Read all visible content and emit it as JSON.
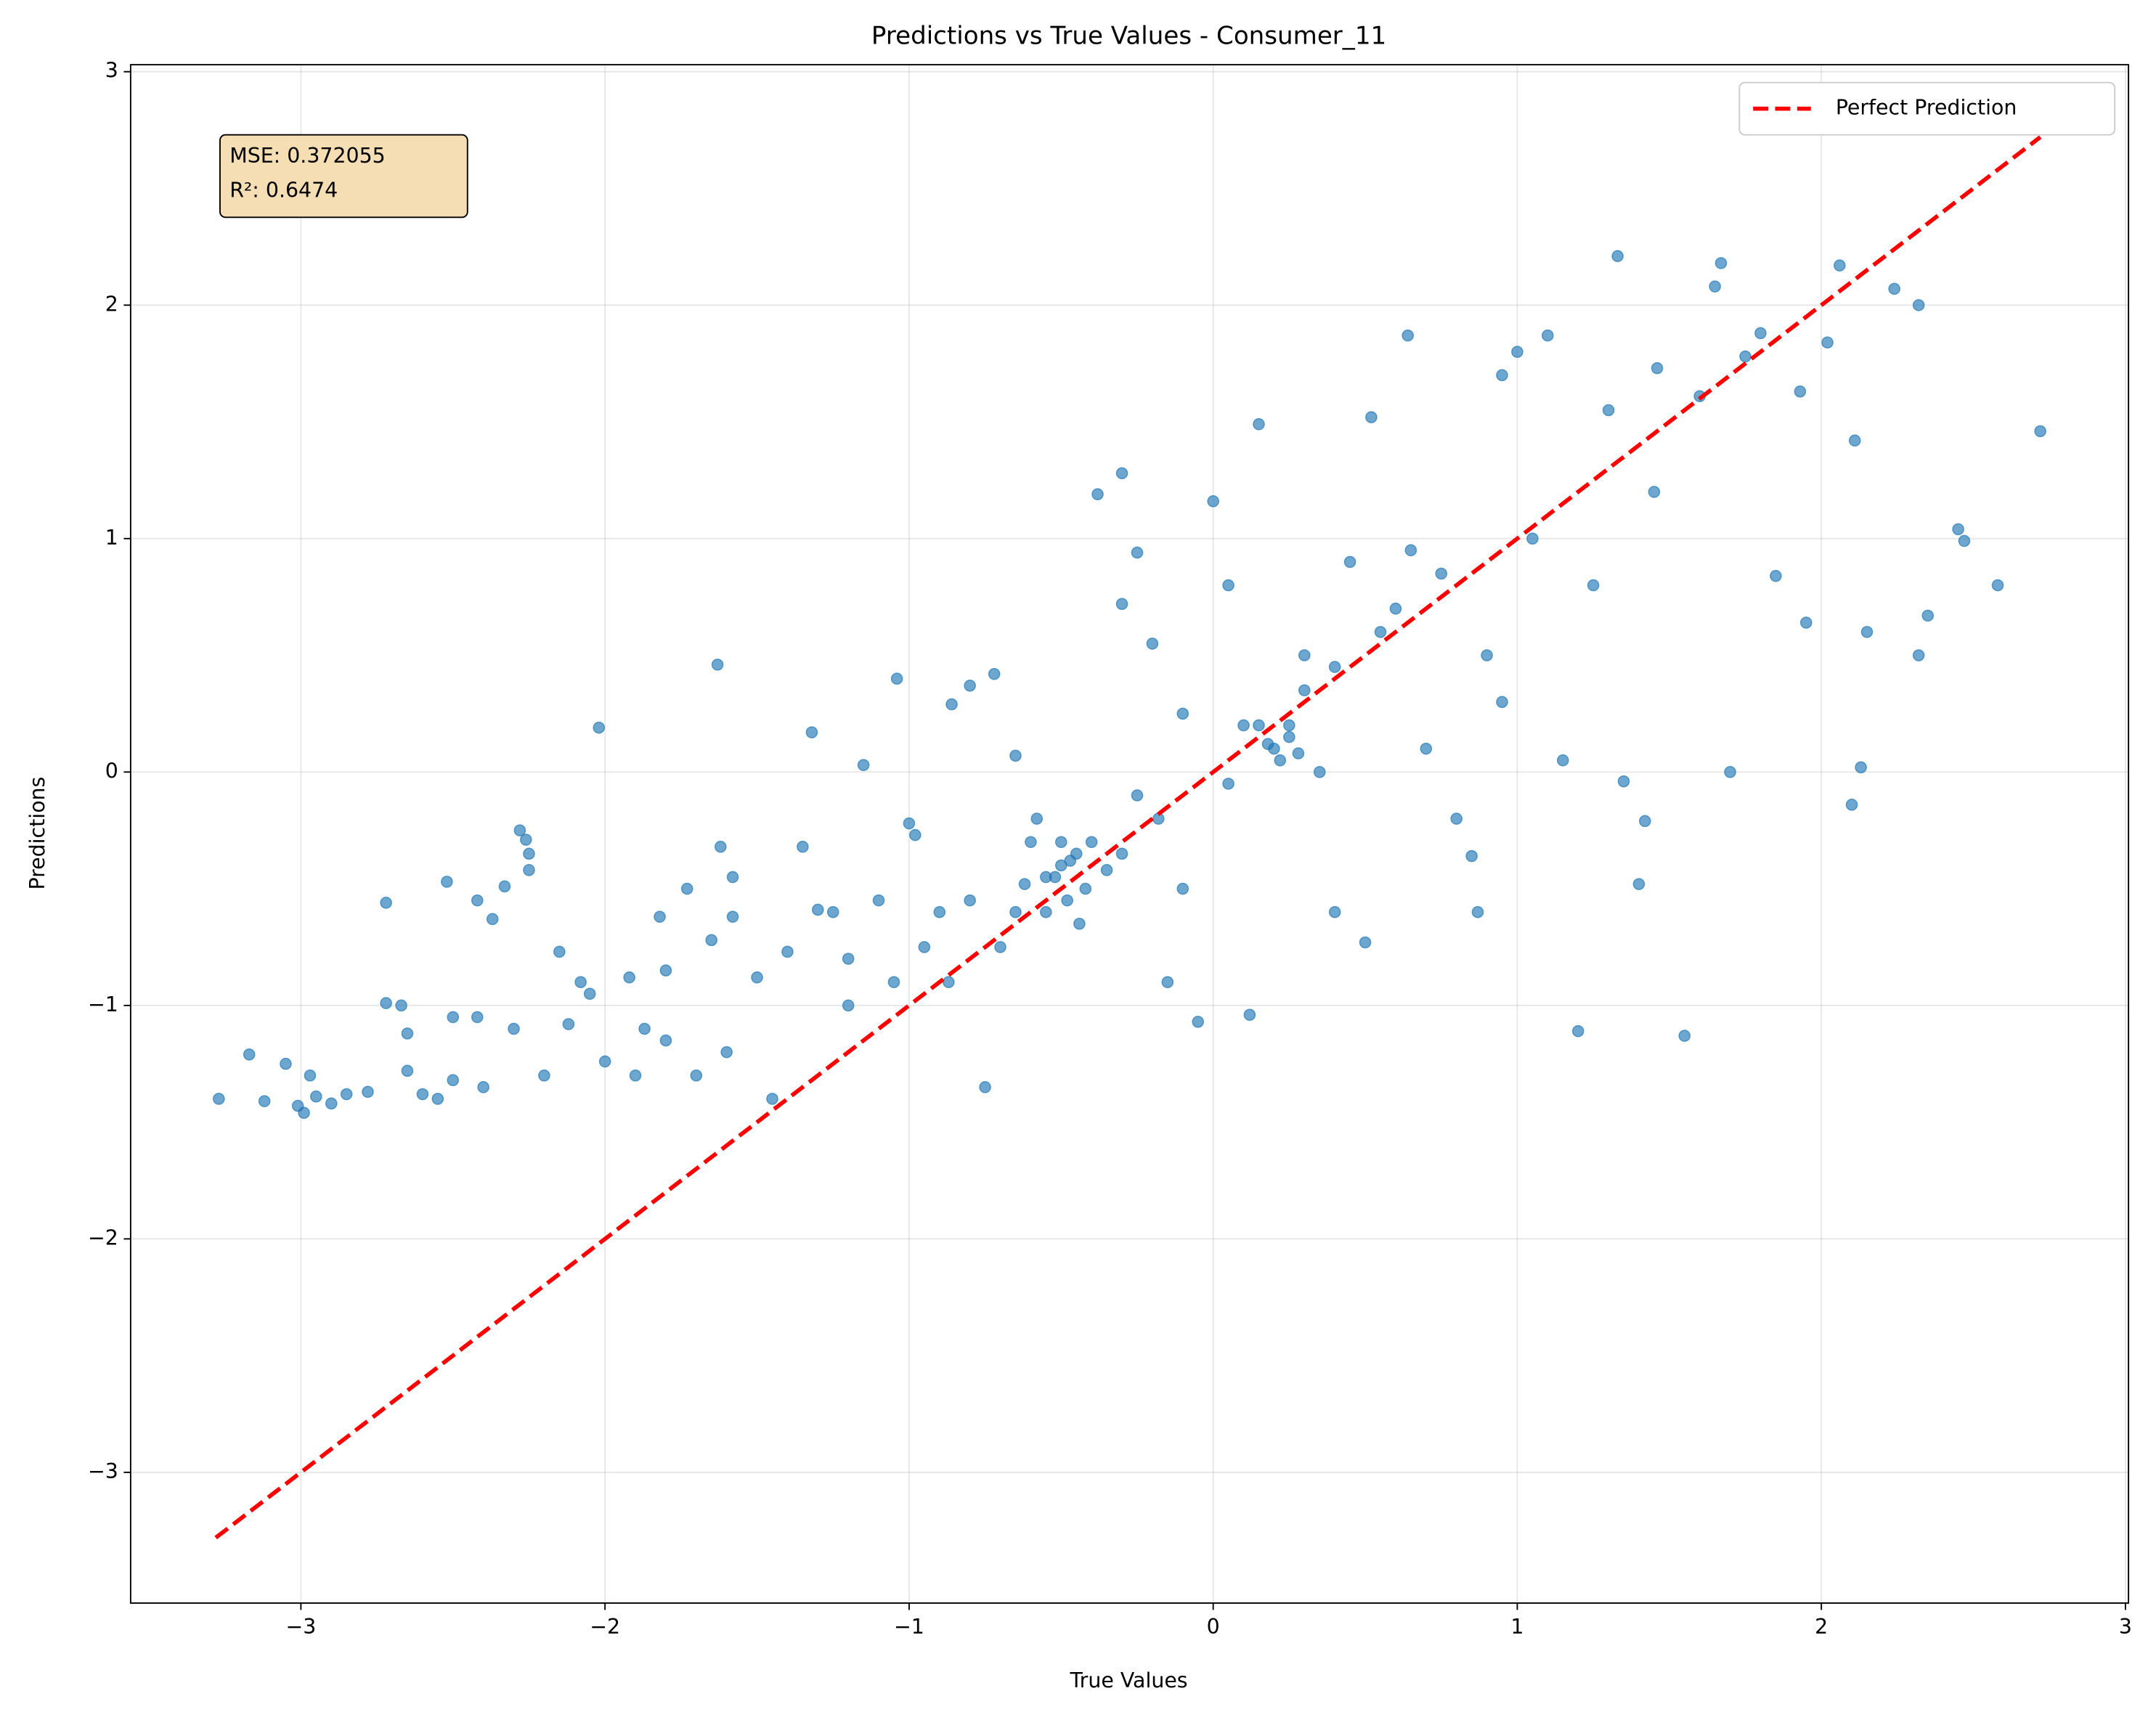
{
  "chart_data": {
    "type": "scatter",
    "title": "Predictions vs True Values - Consumer_11",
    "x_label": "True Values",
    "y_label": "Predictions",
    "annotation": [
      "MSE: 0.372055",
      "R²: 0.6474"
    ],
    "xlim": [
      -3.56,
      3.01
    ],
    "ylim": [
      -3.56,
      3.03
    ],
    "xticks": [
      {
        "value": -3,
        "label": "−3"
      },
      {
        "value": -2,
        "label": "−2"
      },
      {
        "value": -1,
        "label": "−1"
      },
      0,
      1,
      2,
      3
    ],
    "yticks": [
      {
        "value": -3,
        "label": "−3"
      },
      {
        "value": -2,
        "label": "−2"
      },
      {
        "value": -1,
        "label": "−1"
      },
      0,
      1,
      2,
      3
    ],
    "grid": true,
    "legend": "upper right",
    "series": [
      {
        "color": "#1f77b4",
        "x": [
          -3.27,
          -3.17,
          -3.12,
          -3.05,
          -3.01,
          -2.99,
          -2.97,
          -2.95,
          -2.9,
          -2.85,
          -2.78,
          -2.72,
          -2.72,
          -2.67,
          -2.65,
          -2.65,
          -2.6,
          -2.52,
          -2.5,
          -2.5,
          -2.42,
          -2.42,
          -2.37,
          -2.33,
          -2.28,
          -2.26,
          -2.25,
          -2.25,
          -2.3,
          -2.2,
          -2.15,
          -2.12,
          -2.08,
          -2.05,
          -2.02,
          -2.0,
          -1.92,
          -1.87,
          -1.82,
          -1.8,
          -1.73,
          -1.65,
          -1.63,
          -1.62,
          -1.58,
          -1.58,
          -1.5,
          -1.45,
          -1.4,
          -1.35,
          -1.32,
          -1.3,
          -1.25,
          -1.2,
          -1.15,
          -1.1,
          -1.05,
          -1.04,
          -1.0,
          -0.98,
          -0.9,
          -0.87,
          -0.86,
          -0.8,
          -0.75,
          -0.72,
          -0.65,
          -0.6,
          -0.55,
          -0.5,
          -0.48,
          -0.45,
          -0.4,
          -0.38,
          -0.3,
          -0.3,
          -0.25,
          -0.2,
          -0.18,
          -0.15,
          -0.1,
          -0.05,
          0.0,
          0.05,
          0.1,
          0.12,
          0.15,
          0.2,
          0.25,
          0.3,
          0.35,
          0.4,
          0.45,
          0.5,
          0.52,
          0.6,
          0.64,
          0.7,
          0.8,
          0.85,
          0.87,
          0.9,
          0.95,
          1.0,
          1.1,
          1.15,
          1.2,
          1.3,
          1.33,
          1.35,
          1.4,
          1.42,
          1.46,
          1.55,
          1.6,
          1.65,
          1.67,
          1.7,
          1.75,
          1.8,
          1.85,
          1.93,
          1.95,
          2.02,
          2.06,
          2.1,
          2.11,
          2.13,
          2.15,
          2.24,
          2.32,
          2.32,
          2.35,
          2.45,
          2.47,
          2.58,
          2.72,
          -0.52,
          -0.47,
          -0.55,
          -0.42,
          -0.5,
          -0.35,
          -0.58,
          -0.44,
          -0.3,
          -0.62,
          0.18,
          0.22,
          0.25,
          0.15,
          0.28,
          -1.9,
          -1.8,
          -1.7,
          -2.4,
          -2.55,
          -1.6,
          -1.2,
          -0.7,
          -0.8,
          -0.25,
          0.3,
          0.55,
          0.75,
          1.05,
          1.25,
          1.45,
          0.95,
          0.65,
          0.4,
          -0.1,
          0.05,
          -0.65,
          -0.95
        ],
        "values": [
          -1.4,
          -1.21,
          -1.41,
          -1.25,
          -1.43,
          -1.46,
          -1.3,
          -1.39,
          -1.42,
          -1.38,
          -1.37,
          -0.56,
          -0.99,
          -1.0,
          -1.12,
          -1.28,
          -1.38,
          -0.47,
          -1.05,
          -1.32,
          -1.05,
          -0.55,
          -0.63,
          -0.49,
          -0.25,
          -0.29,
          -0.42,
          -0.35,
          -1.1,
          -1.3,
          -0.77,
          -1.08,
          -0.9,
          -0.95,
          0.19,
          -1.24,
          -0.88,
          -1.1,
          -0.62,
          -0.85,
          -0.5,
          -0.72,
          0.46,
          -0.32,
          -0.45,
          -0.62,
          -0.88,
          -1.4,
          -0.77,
          -0.32,
          0.17,
          -0.59,
          -0.6,
          -0.8,
          0.03,
          -0.55,
          -0.9,
          0.4,
          -0.22,
          -0.27,
          -0.6,
          -0.9,
          0.29,
          0.37,
          -1.35,
          0.42,
          0.07,
          -0.3,
          -0.45,
          -0.4,
          -0.55,
          -0.35,
          -0.3,
          1.19,
          1.28,
          0.72,
          0.94,
          0.55,
          -0.2,
          -0.9,
          -0.5,
          -1.07,
          1.16,
          0.8,
          0.2,
          -1.04,
          1.49,
          0.1,
          0.2,
          0.5,
          0.0,
          -0.6,
          0.9,
          -0.73,
          1.52,
          0.7,
          1.87,
          0.1,
          -0.2,
          -0.36,
          -0.6,
          0.5,
          1.7,
          1.8,
          1.87,
          0.05,
          -1.11,
          1.55,
          2.21,
          -0.04,
          -0.48,
          -0.21,
          1.73,
          -1.13,
          1.61,
          2.08,
          2.18,
          0.0,
          1.78,
          1.88,
          0.84,
          1.63,
          0.64,
          1.84,
          2.17,
          -0.14,
          1.42,
          0.02,
          0.6,
          2.07,
          2.0,
          0.5,
          0.67,
          1.04,
          0.99,
          0.8,
          1.46,
          -0.45,
          -0.38,
          -0.6,
          -0.5,
          -0.3,
          -0.42,
          -0.2,
          -0.65,
          -0.35,
          -0.48,
          0.12,
          0.05,
          0.15,
          0.2,
          0.08,
          -1.3,
          -1.15,
          -1.3,
          -1.35,
          -1.4,
          -1.2,
          -1.0,
          -0.75,
          -0.55,
          -0.1,
          0.35,
          0.6,
          0.85,
          1.0,
          0.8,
          1.2,
          0.3,
          0.95,
          0.45,
          0.25,
          -0.05,
          -0.6,
          -0.75
        ]
      },
      {
        "name": "Perfect Prediction",
        "type": "line",
        "color": "#ff0000",
        "dash": true,
        "x": [
          -3.28,
          2.72
        ],
        "values": [
          -3.28,
          2.72
        ]
      }
    ]
  }
}
